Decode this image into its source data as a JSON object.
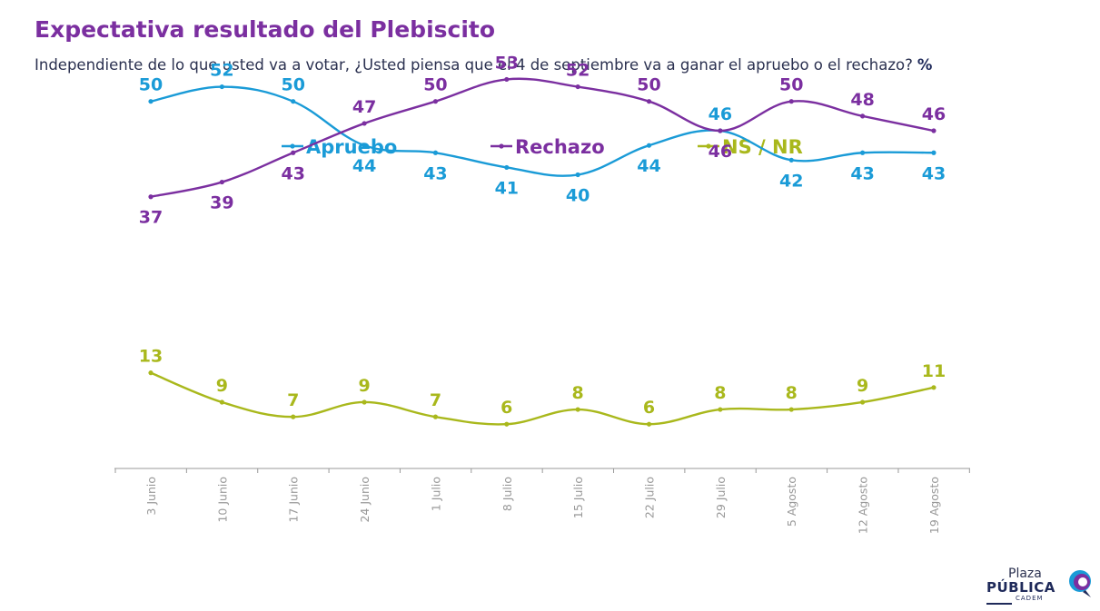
{
  "header": {
    "title": "Expectativa resultado del Plebiscito",
    "subtitle": "Independiente de lo que usted va a votar, ¿Usted piensa que el 4 de septiembre va a ganar el apruebo o el rechazo?",
    "unit": "%"
  },
  "logo": {
    "line1": "Plaza",
    "line2": "PÚBLICA",
    "line3": "CADEM"
  },
  "colors": {
    "apruebo": "#1A9BD7",
    "rechazo": "#7B2FA0",
    "nsnr": "#A9B81C",
    "axis": "#9a9a9a"
  },
  "chart_data": {
    "type": "line",
    "categories": [
      "3 Junio",
      "10 Junio",
      "17 Junio",
      "24 Junio",
      "1 Julio",
      "8 Julio",
      "15 Julio",
      "22 Julio",
      "29 Julio",
      "5 Agosto",
      "12 Agosto",
      "19 Agosto"
    ],
    "series": [
      {
        "name": "Apruebo",
        "values": [
          50,
          52,
          50,
          44,
          43,
          41,
          40,
          44,
          46,
          42,
          43,
          43
        ]
      },
      {
        "name": "Rechazo",
        "values": [
          37,
          39,
          43,
          47,
          50,
          53,
          52,
          50,
          46,
          50,
          48,
          46
        ]
      },
      {
        "name": "NS / NR",
        "values": [
          13,
          9,
          7,
          9,
          7,
          6,
          8,
          6,
          8,
          8,
          9,
          11
        ]
      }
    ],
    "legend_position": "top",
    "grid": false
  }
}
